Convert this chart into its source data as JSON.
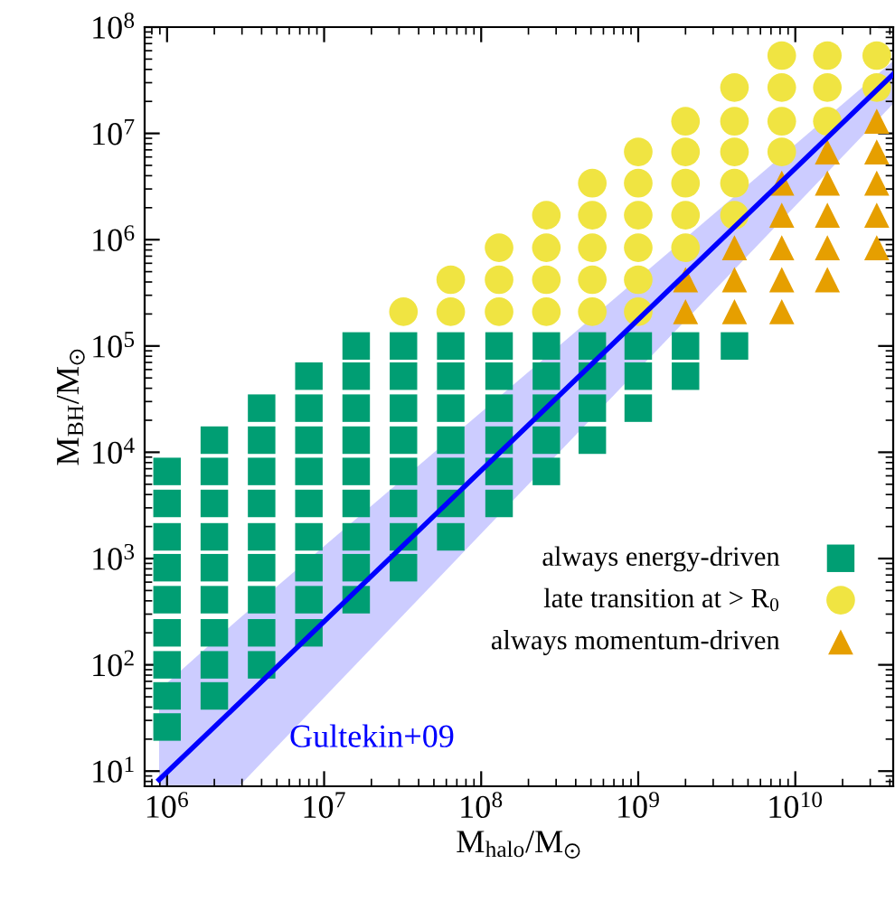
{
  "chart_data": {
    "type": "scatter",
    "xlabel": "M$_{halo}$/M$_{⊙}$",
    "ylabel": "M$_{BH}$/M$_{⊙}$",
    "log": "xy",
    "grid": false,
    "legend": "bottom right",
    "xlim": [
      720000,
      42000000000
    ],
    "ylim": [
      7.2,
      100000000
    ],
    "xticks": [
      {
        "value": 1000000,
        "label": "10$^{6}$"
      },
      {
        "value": 10000000,
        "label": "10$^{7}$"
      },
      {
        "value": 100000000,
        "label": "10$^{8}$"
      },
      {
        "value": 1000000000,
        "label": "10$^{9}$"
      },
      {
        "value": 10000000000,
        "label": "10$^{10}$"
      }
    ],
    "yticks": [
      {
        "value": 10,
        "label": "10$^{1}$"
      },
      {
        "value": 100,
        "label": "10$^{2}$"
      },
      {
        "value": 1000,
        "label": "10$^{3}$"
      },
      {
        "value": 10000,
        "label": "10$^{4}$"
      },
      {
        "value": 100000,
        "label": "10$^{5}$"
      },
      {
        "value": 1000000,
        "label": "10$^{6}$"
      },
      {
        "value": 10000000,
        "label": "10$^{7}$"
      },
      {
        "value": 100000000,
        "label": "10$^{8}$"
      }
    ],
    "series": [
      {
        "name": "always energy-driven",
        "marker": "square",
        "color": "#009e73",
        "x": [
          1000000,
          1000000,
          1000000,
          1000000,
          1000000,
          1000000,
          1000000,
          1000000,
          1000000,
          2000000,
          2000000,
          2000000,
          2000000,
          2000000,
          2000000,
          2000000,
          2000000,
          2000000,
          4000000,
          4000000,
          4000000,
          4000000,
          4000000,
          4000000,
          4000000,
          4000000,
          4000000,
          8000000,
          8000000,
          8000000,
          8000000,
          8000000,
          8000000,
          8000000,
          8000000,
          8000000,
          16000000,
          16000000,
          16000000,
          16000000,
          16000000,
          16000000,
          16000000,
          16000000,
          16000000,
          32000000,
          32000000,
          32000000,
          32000000,
          32000000,
          32000000,
          32000000,
          32000000,
          64000000,
          64000000,
          64000000,
          64000000,
          64000000,
          64000000,
          64000000,
          130000000,
          130000000,
          130000000,
          130000000,
          130000000,
          130000000,
          260000000,
          260000000,
          260000000,
          260000000,
          260000000,
          510000000,
          510000000,
          510000000,
          510000000,
          1000000000,
          1000000000,
          1000000000,
          2000000000,
          2000000000,
          4100000000
        ],
        "values": [
          26,
          51,
          100,
          200,
          410,
          820,
          1600,
          3300,
          6600,
          51,
          100,
          200,
          410,
          820,
          1600,
          3300,
          6600,
          13000,
          100,
          200,
          410,
          820,
          1600,
          3300,
          6600,
          13000,
          26000,
          200,
          410,
          820,
          1600,
          3300,
          6600,
          13000,
          26000,
          52000,
          410,
          820,
          1600,
          3300,
          6600,
          13000,
          26000,
          52000,
          100000,
          820,
          1600,
          3300,
          6600,
          13000,
          26000,
          52000,
          100000,
          1600,
          3300,
          6600,
          13000,
          26000,
          52000,
          100000,
          3300,
          6600,
          13000,
          26000,
          52000,
          100000,
          6600,
          13000,
          26000,
          52000,
          100000,
          13000,
          26000,
          52000,
          100000,
          26000,
          52000,
          100000,
          52000,
          100000,
          100000
        ]
      },
      {
        "name": "late transition at > R$_{0}$",
        "marker": "circle",
        "color": "#f0e442",
        "x": [
          32000000,
          64000000,
          64000000,
          130000000,
          130000000,
          130000000,
          260000000,
          260000000,
          260000000,
          260000000,
          510000000,
          510000000,
          510000000,
          510000000,
          510000000,
          1000000000,
          1000000000,
          1000000000,
          1000000000,
          1000000000,
          1000000000,
          2000000000,
          2000000000,
          2000000000,
          2000000000,
          2000000000,
          4100000000,
          4100000000,
          4100000000,
          4100000000,
          4100000000,
          8200000000,
          8200000000,
          8200000000,
          8200000000,
          16000000000,
          16000000000,
          16000000000,
          33000000000,
          33000000000
        ],
        "values": [
          210000,
          210000,
          420000,
          210000,
          420000,
          840000,
          210000,
          420000,
          840000,
          1700000,
          210000,
          420000,
          840000,
          1700000,
          3400000,
          210000,
          420000,
          840000,
          1700000,
          3400000,
          6700000,
          840000,
          1700000,
          3400000,
          6700000,
          13000000,
          1700000,
          3400000,
          6700000,
          13000000,
          27000000,
          6700000,
          13000000,
          27000000,
          54000000,
          13000000,
          27000000,
          54000000,
          27000000,
          54000000
        ]
      },
      {
        "name": "always momentum-driven",
        "marker": "triangle",
        "color": "#e69f00",
        "x": [
          2000000000,
          2000000000,
          4100000000,
          4100000000,
          4100000000,
          8200000000,
          8200000000,
          8200000000,
          8200000000,
          8200000000,
          16000000000,
          16000000000,
          16000000000,
          16000000000,
          16000000000,
          33000000000,
          33000000000,
          33000000000,
          33000000000,
          33000000000
        ],
        "values": [
          210000,
          420000,
          210000,
          420000,
          840000,
          210000,
          420000,
          840000,
          1700000,
          3400000,
          420000,
          840000,
          1700000,
          3400000,
          6700000,
          840000,
          1700000,
          3400000,
          6700000,
          13000000
        ]
      },
      {
        "type": "line",
        "color": "#0000ff",
        "line_style": "solid",
        "x": [
          890000,
          2900000,
          42000000000
        ],
        "values": [
          8.3,
          44,
          36000000
        ],
        "lower": [
          7.3,
          7.3,
          19000000
        ],
        "upper": [
          58,
          275,
          48000000
        ]
      }
    ],
    "annotations": [
      {
        "text": "Gultekin+09",
        "x": 6000000,
        "y": 20
      }
    ]
  }
}
